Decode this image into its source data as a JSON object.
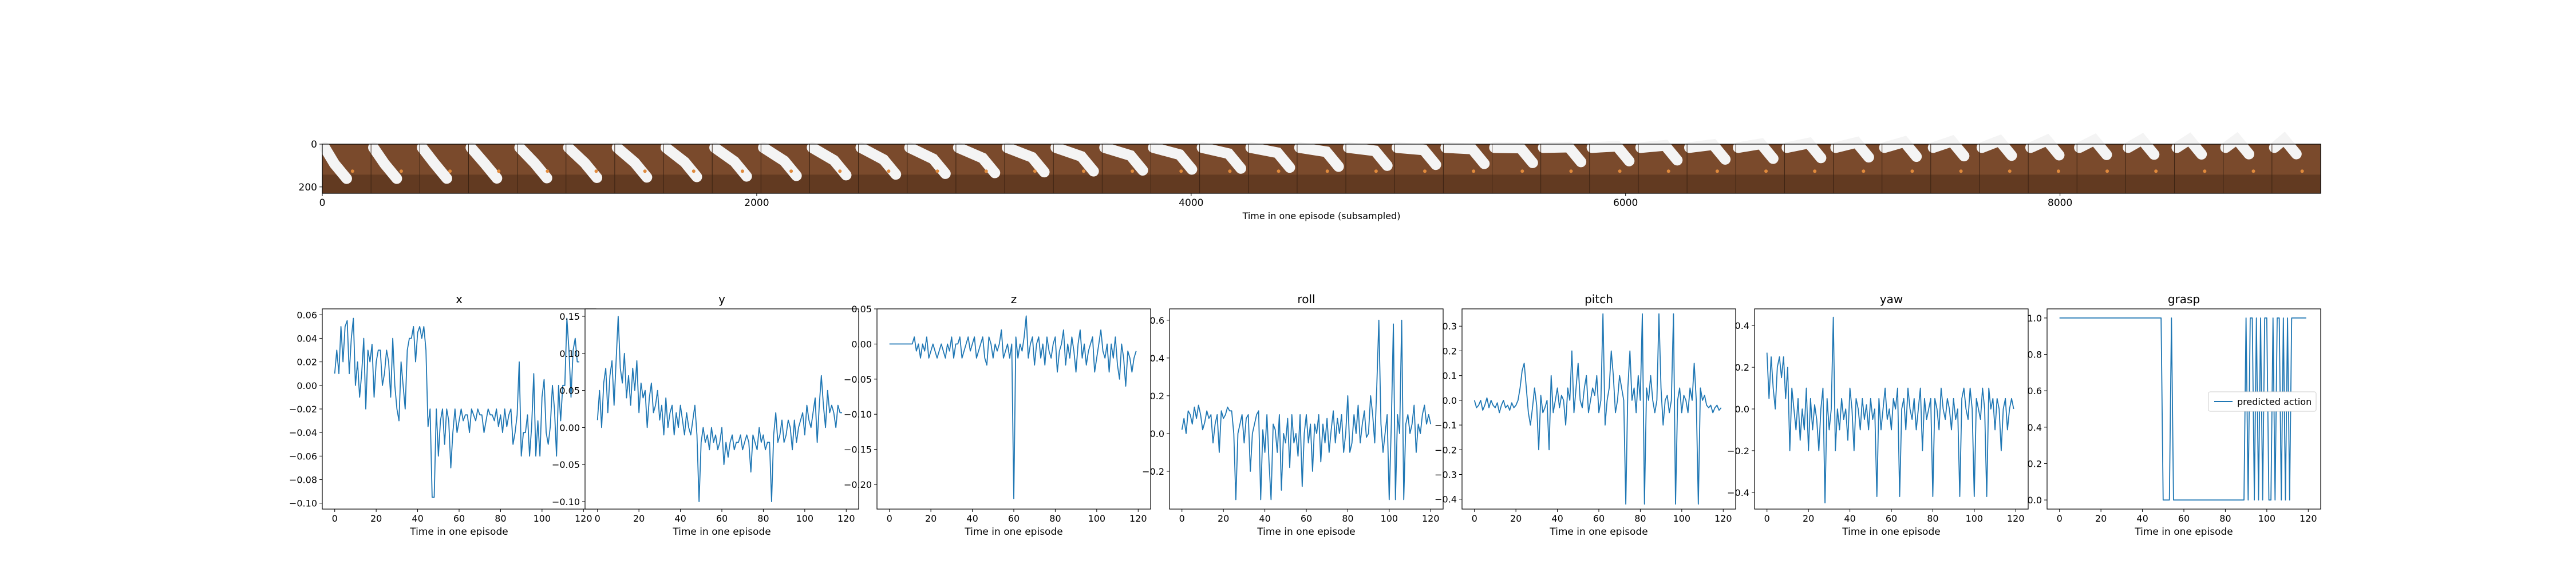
{
  "strip": {
    "xlabel": "Time in one episode (subsampled)",
    "xticks": [
      0,
      2000,
      4000,
      6000,
      8000
    ],
    "yticks": [
      0,
      200
    ],
    "xlim": [
      0,
      9200
    ],
    "ylim": [
      230,
      0
    ],
    "frame_count": 41,
    "colors": {
      "wood": "#7a4a2c",
      "wood_dark": "#4e2e19",
      "arm": "#f4f4f4",
      "object": "#e08a3c"
    }
  },
  "chart_data": [
    {
      "type": "line",
      "title": "x",
      "xlabel": "Time in one episode",
      "xlim": [
        -6,
        126
      ],
      "ylim": [
        -0.105,
        0.065
      ],
      "yticks": [
        "0.06",
        "0.04",
        "0.02",
        "0.00",
        "−0.02",
        "−0.04",
        "−0.06",
        "−0.08",
        "−0.10"
      ],
      "ytick_values": [
        0.06,
        0.04,
        0.02,
        0.0,
        -0.02,
        -0.04,
        -0.06,
        -0.08,
        -0.1
      ],
      "xticks": [
        0,
        20,
        40,
        60,
        80,
        100,
        120
      ],
      "series": [
        {
          "values": [
            0.01,
            0.03,
            0.01,
            0.05,
            0.02,
            0.05,
            0.055,
            0.01,
            0.04,
            0.057,
            0.0,
            0.02,
            -0.01,
            0.01,
            0.04,
            -0.02,
            0.03,
            0.02,
            0.035,
            -0.01,
            0.02,
            0.03,
            0.03,
            0.0,
            0.01,
            0.03,
            0.02,
            -0.01,
            0.04,
            0.0,
            -0.02,
            -0.03,
            0.02,
            0.0,
            -0.02,
            0.03,
            0.04,
            0.04,
            0.05,
            0.02,
            0.045,
            0.05,
            0.04,
            0.05,
            0.03,
            -0.035,
            -0.02,
            -0.095,
            -0.095,
            -0.02,
            -0.06,
            -0.03,
            -0.02,
            -0.05,
            -0.02,
            -0.03,
            -0.07,
            -0.04,
            -0.02,
            -0.04,
            -0.03,
            -0.02,
            -0.03,
            -0.025,
            -0.025,
            -0.04,
            -0.02,
            -0.025,
            -0.03,
            -0.02,
            -0.025,
            -0.025,
            -0.04,
            -0.03,
            -0.02,
            -0.025,
            -0.025,
            -0.03,
            -0.02,
            -0.035,
            -0.025,
            -0.04,
            -0.02,
            -0.035,
            -0.025,
            -0.02,
            -0.05,
            -0.04,
            -0.025,
            0.02,
            -0.06,
            -0.04,
            -0.04,
            -0.025,
            -0.06,
            -0.035,
            0.01,
            -0.06,
            -0.03,
            -0.06,
            -0.01,
            0.005,
            -0.04,
            -0.05,
            -0.035,
            0.0,
            -0.02,
            -0.06,
            0.0,
            -0.03,
            0.0,
            0.0,
            0.057,
            0.03,
            -0.01,
            0.03,
            0.04,
            0.02,
            0.02
          ]
        }
      ]
    },
    {
      "type": "line",
      "title": "y",
      "xlabel": "Time in one episode",
      "xlim": [
        -6,
        126
      ],
      "ylim": [
        -0.11,
        0.16
      ],
      "yticks": [
        "0.15",
        "0.10",
        "0.05",
        "0.00",
        "−0.05",
        "−0.10"
      ],
      "ytick_values": [
        0.15,
        0.1,
        0.05,
        0.0,
        -0.05,
        -0.1
      ],
      "xticks": [
        0,
        20,
        40,
        60,
        80,
        100,
        120
      ],
      "series": [
        {
          "values": [
            0.01,
            0.05,
            0.0,
            0.06,
            0.08,
            0.02,
            0.07,
            0.09,
            0.03,
            0.09,
            0.15,
            0.08,
            0.06,
            0.1,
            0.04,
            0.07,
            0.03,
            0.08,
            0.05,
            0.09,
            0.02,
            0.06,
            0.04,
            0.05,
            0.0,
            0.04,
            0.06,
            0.02,
            0.03,
            0.05,
            0.01,
            0.03,
            -0.01,
            0.04,
            0.0,
            0.02,
            0.03,
            -0.01,
            0.02,
            0.0,
            0.03,
            0.01,
            -0.01,
            0.02,
            0.0,
            -0.01,
            0.01,
            0.03,
            -0.01,
            -0.1,
            -0.02,
            0.0,
            -0.02,
            -0.01,
            -0.03,
            0.0,
            -0.02,
            -0.01,
            -0.03,
            -0.02,
            0.0,
            -0.05,
            -0.02,
            -0.04,
            -0.02,
            -0.01,
            -0.03,
            -0.02,
            -0.02,
            -0.01,
            -0.03,
            -0.02,
            -0.01,
            -0.02,
            -0.06,
            -0.01,
            -0.02,
            -0.03,
            0.0,
            -0.02,
            -0.01,
            -0.03,
            -0.02,
            -0.02,
            -0.1,
            -0.01,
            0.02,
            -0.02,
            -0.01,
            0.01,
            -0.02,
            -0.01,
            0.01,
            0.0,
            -0.03,
            0.01,
            -0.02,
            0.0,
            0.01,
            0.02,
            -0.01,
            0.03,
            0.01,
            0.0,
            0.02,
            0.04,
            -0.02,
            0.03,
            0.07,
            0.03,
            0.0,
            0.05,
            0.02,
            0.03,
            0.02,
            0.0,
            0.03,
            0.02,
            0.02
          ]
        }
      ]
    },
    {
      "type": "line",
      "title": "z",
      "xlabel": "Time in one episode",
      "xlim": [
        -6,
        126
      ],
      "ylim": [
        -0.235,
        0.05
      ],
      "yticks": [
        "0.05",
        "0.00",
        "−0.05",
        "−0.10",
        "−0.15",
        "−0.20"
      ],
      "ytick_values": [
        0.05,
        0.0,
        -0.05,
        -0.1,
        -0.15,
        -0.2
      ],
      "xticks": [
        0,
        20,
        40,
        60,
        80,
        100,
        120
      ],
      "series": [
        {
          "values": [
            0.0,
            0.0,
            0.0,
            0.0,
            0.0,
            0.0,
            0.0,
            0.0,
            0.0,
            0.0,
            0.0,
            0.0,
            0.01,
            -0.01,
            0.0,
            -0.02,
            0.0,
            -0.01,
            0.01,
            -0.02,
            -0.01,
            0.0,
            -0.01,
            -0.02,
            -0.01,
            0.0,
            -0.01,
            -0.02,
            0.0,
            -0.01,
            0.01,
            -0.02,
            0.0,
            0.0,
            0.01,
            -0.02,
            -0.01,
            0.0,
            0.01,
            -0.01,
            0.0,
            0.01,
            -0.02,
            -0.01,
            0.0,
            0.01,
            -0.02,
            -0.03,
            0.01,
            0.0,
            -0.02,
            0.0,
            -0.01,
            0.0,
            0.02,
            -0.02,
            -0.01,
            0.0,
            -0.02,
            0.0,
            -0.22,
            0.01,
            -0.02,
            0.0,
            -0.01,
            0.01,
            0.04,
            -0.02,
            0.0,
            0.01,
            -0.03,
            0.0,
            0.01,
            -0.02,
            0.0,
            -0.03,
            0.01,
            -0.01,
            -0.02,
            0.0,
            0.01,
            -0.04,
            -0.01,
            0.0,
            0.02,
            -0.03,
            0.0,
            -0.02,
            0.01,
            -0.01,
            -0.04,
            0.0,
            0.02,
            -0.02,
            0.0,
            -0.03,
            -0.01,
            0.0,
            0.01,
            -0.04,
            -0.02,
            0.0,
            0.02,
            -0.01,
            -0.02,
            0.0,
            -0.04,
            0.0,
            -0.02,
            0.01,
            -0.03,
            -0.05,
            0.0,
            -0.02,
            -0.06,
            -0.01,
            -0.02,
            -0.04,
            -0.02,
            -0.01
          ]
        }
      ]
    },
    {
      "type": "line",
      "title": "roll",
      "xlabel": "Time in one episode",
      "xlim": [
        -6,
        126
      ],
      "ylim": [
        -0.4,
        0.66
      ],
      "yticks": [
        "0.6",
        "0.4",
        "0.2",
        "0.0",
        "−0.2"
      ],
      "ytick_values": [
        0.6,
        0.4,
        0.2,
        0.0,
        -0.2
      ],
      "xticks": [
        0,
        20,
        40,
        60,
        80,
        100,
        120
      ],
      "series": [
        {
          "values": [
            0.02,
            0.08,
            0.0,
            0.12,
            0.1,
            0.05,
            0.14,
            0.08,
            0.15,
            0.1,
            0.02,
            0.06,
            0.12,
            0.08,
            0.1,
            -0.05,
            0.05,
            0.1,
            -0.1,
            0.12,
            0.08,
            0.1,
            0.14,
            0.12,
            0.12,
            0.0,
            -0.35,
            0.0,
            0.05,
            0.1,
            -0.05,
            0.08,
            0.1,
            -0.2,
            0.0,
            0.05,
            0.1,
            0.12,
            -0.35,
            0.02,
            -0.1,
            0.1,
            -0.15,
            -0.35,
            0.05,
            0.02,
            -0.1,
            0.1,
            -0.3,
            0.0,
            -0.05,
            0.08,
            -0.18,
            0.1,
            -0.05,
            0.0,
            -0.12,
            0.1,
            -0.28,
            0.0,
            0.1,
            -0.05,
            0.05,
            -0.2,
            0.05,
            0.0,
            0.1,
            -0.15,
            0.05,
            -0.05,
            0.08,
            -0.1,
            0.02,
            0.12,
            -0.05,
            0.08,
            0.0,
            0.1,
            -0.1,
            0.0,
            0.2,
            -0.1,
            -0.05,
            0.1,
            0.0,
            0.15,
            -0.05,
            0.05,
            0.12,
            -0.02,
            0.0,
            0.2,
            0.1,
            -0.05,
            0.25,
            0.6,
            0.05,
            -0.1,
            0.0,
            0.1,
            -0.35,
            0.05,
            0.58,
            -0.35,
            0.1,
            0.0,
            0.6,
            -0.35,
            0.05,
            0.1,
            0.0,
            0.05,
            0.15,
            -0.1,
            0.05,
            0.0,
            0.1,
            0.15,
            0.05,
            0.1,
            0.05
          ]
        }
      ]
    },
    {
      "type": "line",
      "title": "pitch",
      "xlabel": "Time in one episode",
      "xlim": [
        -6,
        126
      ],
      "ylim": [
        -0.44,
        0.37
      ],
      "yticks": [
        "0.3",
        "0.2",
        "0.1",
        "0.0",
        "−0.1",
        "−0.2",
        "−0.3",
        "−0.4"
      ],
      "ytick_values": [
        0.3,
        0.2,
        0.1,
        0.0,
        -0.1,
        -0.2,
        -0.3,
        -0.4
      ],
      "xticks": [
        0,
        20,
        40,
        60,
        80,
        100,
        120
      ],
      "series": [
        {
          "values": [
            0.0,
            -0.03,
            -0.02,
            0.0,
            -0.04,
            -0.02,
            0.01,
            -0.03,
            0.0,
            -0.02,
            -0.03,
            -0.01,
            -0.05,
            -0.02,
            0.0,
            -0.03,
            -0.02,
            -0.04,
            -0.01,
            -0.03,
            -0.02,
            0.0,
            0.05,
            0.12,
            0.15,
            0.05,
            -0.05,
            -0.1,
            -0.03,
            0.05,
            -0.02,
            -0.2,
            0.02,
            -0.05,
            -0.03,
            0.0,
            -0.2,
            0.1,
            -0.05,
            0.0,
            0.05,
            -0.03,
            0.02,
            0.0,
            -0.1,
            0.05,
            0.0,
            0.2,
            -0.05,
            0.05,
            0.15,
            0.0,
            -0.03,
            0.05,
            0.1,
            -0.05,
            0.0,
            0.05,
            0.02,
            0.1,
            -0.05,
            0.0,
            0.35,
            -0.1,
            0.0,
            0.05,
            0.2,
            0.1,
            -0.05,
            0.0,
            0.1,
            0.05,
            0.0,
            -0.42,
            0.05,
            0.2,
            0.0,
            0.05,
            -0.05,
            0.1,
            0.0,
            0.35,
            -0.42,
            0.05,
            0.0,
            0.1,
            0.0,
            -0.05,
            0.0,
            0.35,
            0.05,
            -0.1,
            0.0,
            0.02,
            -0.05,
            0.0,
            0.35,
            -0.42,
            0.0,
            0.05,
            -0.05,
            0.02,
            0.0,
            -0.05,
            0.05,
            0.0,
            0.15,
            0.0,
            -0.42,
            0.05,
            0.0,
            0.02,
            -0.02,
            -0.03,
            -0.02,
            -0.05,
            -0.03,
            -0.02,
            -0.04,
            -0.03
          ]
        }
      ]
    },
    {
      "type": "line",
      "title": "yaw",
      "xlabel": "Time in one episode",
      "xlim": [
        -6,
        126
      ],
      "ylim": [
        -0.48,
        0.48
      ],
      "yticks": [
        "0.4",
        "0.2",
        "0.0",
        "−0.2",
        "−0.4"
      ],
      "ytick_values": [
        0.4,
        0.2,
        0.0,
        -0.2,
        -0.4
      ],
      "xticks": [
        0,
        20,
        40,
        60,
        80,
        100,
        120
      ],
      "series": [
        {
          "values": [
            0.27,
            0.05,
            0.25,
            0.1,
            0.0,
            0.2,
            0.25,
            0.15,
            0.25,
            0.05,
            0.2,
            -0.2,
            0.1,
            0.0,
            -0.1,
            0.05,
            -0.15,
            0.0,
            -0.1,
            0.1,
            -0.2,
            0.05,
            -0.1,
            0.02,
            -0.05,
            -0.2,
            0.0,
            0.1,
            -0.45,
            0.05,
            -0.1,
            0.0,
            0.44,
            -0.2,
            0.0,
            -0.1,
            0.05,
            -0.05,
            0.0,
            -0.15,
            0.1,
            0.0,
            -0.2,
            0.05,
            0.0,
            -0.1,
            0.05,
            -0.05,
            0.02,
            -0.1,
            0.05,
            -0.05,
            0.0,
            -0.42,
            0.05,
            -0.1,
            0.0,
            0.1,
            -0.05,
            0.0,
            -0.1,
            0.05,
            0.0,
            0.1,
            -0.42,
            0.0,
            0.05,
            -0.1,
            0.1,
            0.0,
            -0.05,
            0.05,
            -0.1,
            0.0,
            0.1,
            -0.2,
            0.05,
            -0.05,
            0.0,
            0.05,
            -0.42,
            0.05,
            0.0,
            -0.1,
            0.1,
            0.0,
            -0.05,
            0.05,
            0.0,
            -0.1,
            0.05,
            -0.05,
            0.0,
            -0.42,
            0.05,
            0.1,
            0.0,
            -0.05,
            0.1,
            0.0,
            -0.42,
            0.05,
            0.0,
            -0.05,
            0.1,
            0.0,
            -0.42,
            0.1,
            0.0,
            0.05,
            -0.1,
            0.05,
            0.0,
            -0.2,
            0.0,
            0.05,
            -0.1,
            0.0,
            0.05,
            0.0
          ]
        }
      ]
    },
    {
      "type": "line",
      "title": "grasp",
      "xlabel": "Time in one episode",
      "xlim": [
        -6,
        126
      ],
      "ylim": [
        -0.05,
        1.05
      ],
      "yticks": [
        "1.0",
        "0.8",
        "0.6",
        "0.4",
        "0.2",
        "0.0"
      ],
      "ytick_values": [
        1.0,
        0.8,
        0.6,
        0.4,
        0.2,
        0.0
      ],
      "xticks": [
        0,
        20,
        40,
        60,
        80,
        100,
        120
      ],
      "legend": {
        "label": "predicted action",
        "placement": "center-right"
      },
      "series": [
        {
          "name": "predicted action",
          "values": [
            1,
            1,
            1,
            1,
            1,
            1,
            1,
            1,
            1,
            1,
            1,
            1,
            1,
            1,
            1,
            1,
            1,
            1,
            1,
            1,
            1,
            1,
            1,
            1,
            1,
            1,
            1,
            1,
            1,
            1,
            1,
            1,
            1,
            1,
            1,
            1,
            1,
            1,
            1,
            1,
            1,
            1,
            1,
            1,
            1,
            1,
            1,
            1,
            1,
            1,
            0,
            0,
            0,
            0,
            1,
            0,
            0,
            0,
            0,
            0,
            0,
            0,
            0,
            0,
            0,
            0,
            0,
            0,
            0,
            0,
            0,
            0,
            0,
            0,
            0,
            0,
            0,
            0,
            0,
            0,
            0,
            0,
            0,
            0,
            0,
            0,
            0,
            0,
            0,
            0,
            1,
            0,
            1,
            1,
            0,
            1,
            0,
            1,
            0,
            1,
            1,
            0,
            0,
            1,
            0,
            1,
            1,
            0,
            1,
            0,
            1,
            0,
            1,
            1,
            1,
            1,
            1,
            1,
            1,
            1
          ]
        }
      ]
    }
  ]
}
